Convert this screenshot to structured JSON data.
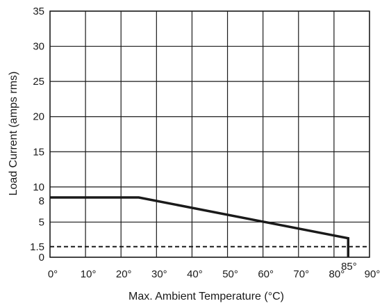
{
  "chart_data": {
    "type": "line",
    "xlabel": "Max. Ambient Temperature (°C)",
    "ylabel": "Load Current (amps rms)",
    "xlim": [
      0,
      90
    ],
    "ylim": [
      0,
      35
    ],
    "grid": true,
    "x_ticks": [
      0,
      10,
      20,
      30,
      40,
      50,
      60,
      70,
      80,
      90
    ],
    "x_tick_labels": [
      "0°",
      "10°",
      "20°",
      "30°",
      "40°",
      "50°",
      "60°",
      "70°",
      "80°",
      "90°"
    ],
    "y_grid": [
      0,
      5,
      10,
      15,
      20,
      25,
      30,
      35
    ],
    "y_ticks": [
      0,
      1.5,
      5,
      8,
      10,
      15,
      20,
      25,
      30,
      35
    ],
    "y_tick_labels": [
      "0",
      "1.5",
      "5",
      "8",
      "10",
      "15",
      "20",
      "25",
      "30",
      "35"
    ],
    "series": [
      {
        "style": "solid",
        "x": [
          0,
          25,
          84,
          84
        ],
        "y": [
          8.5,
          8.5,
          2.7,
          0
        ]
      },
      {
        "style": "dashed",
        "x": [
          0,
          90
        ],
        "y": [
          1.5,
          1.5
        ]
      }
    ],
    "annotations": [
      {
        "text": "85°",
        "x": 85,
        "y": 0
      }
    ]
  }
}
